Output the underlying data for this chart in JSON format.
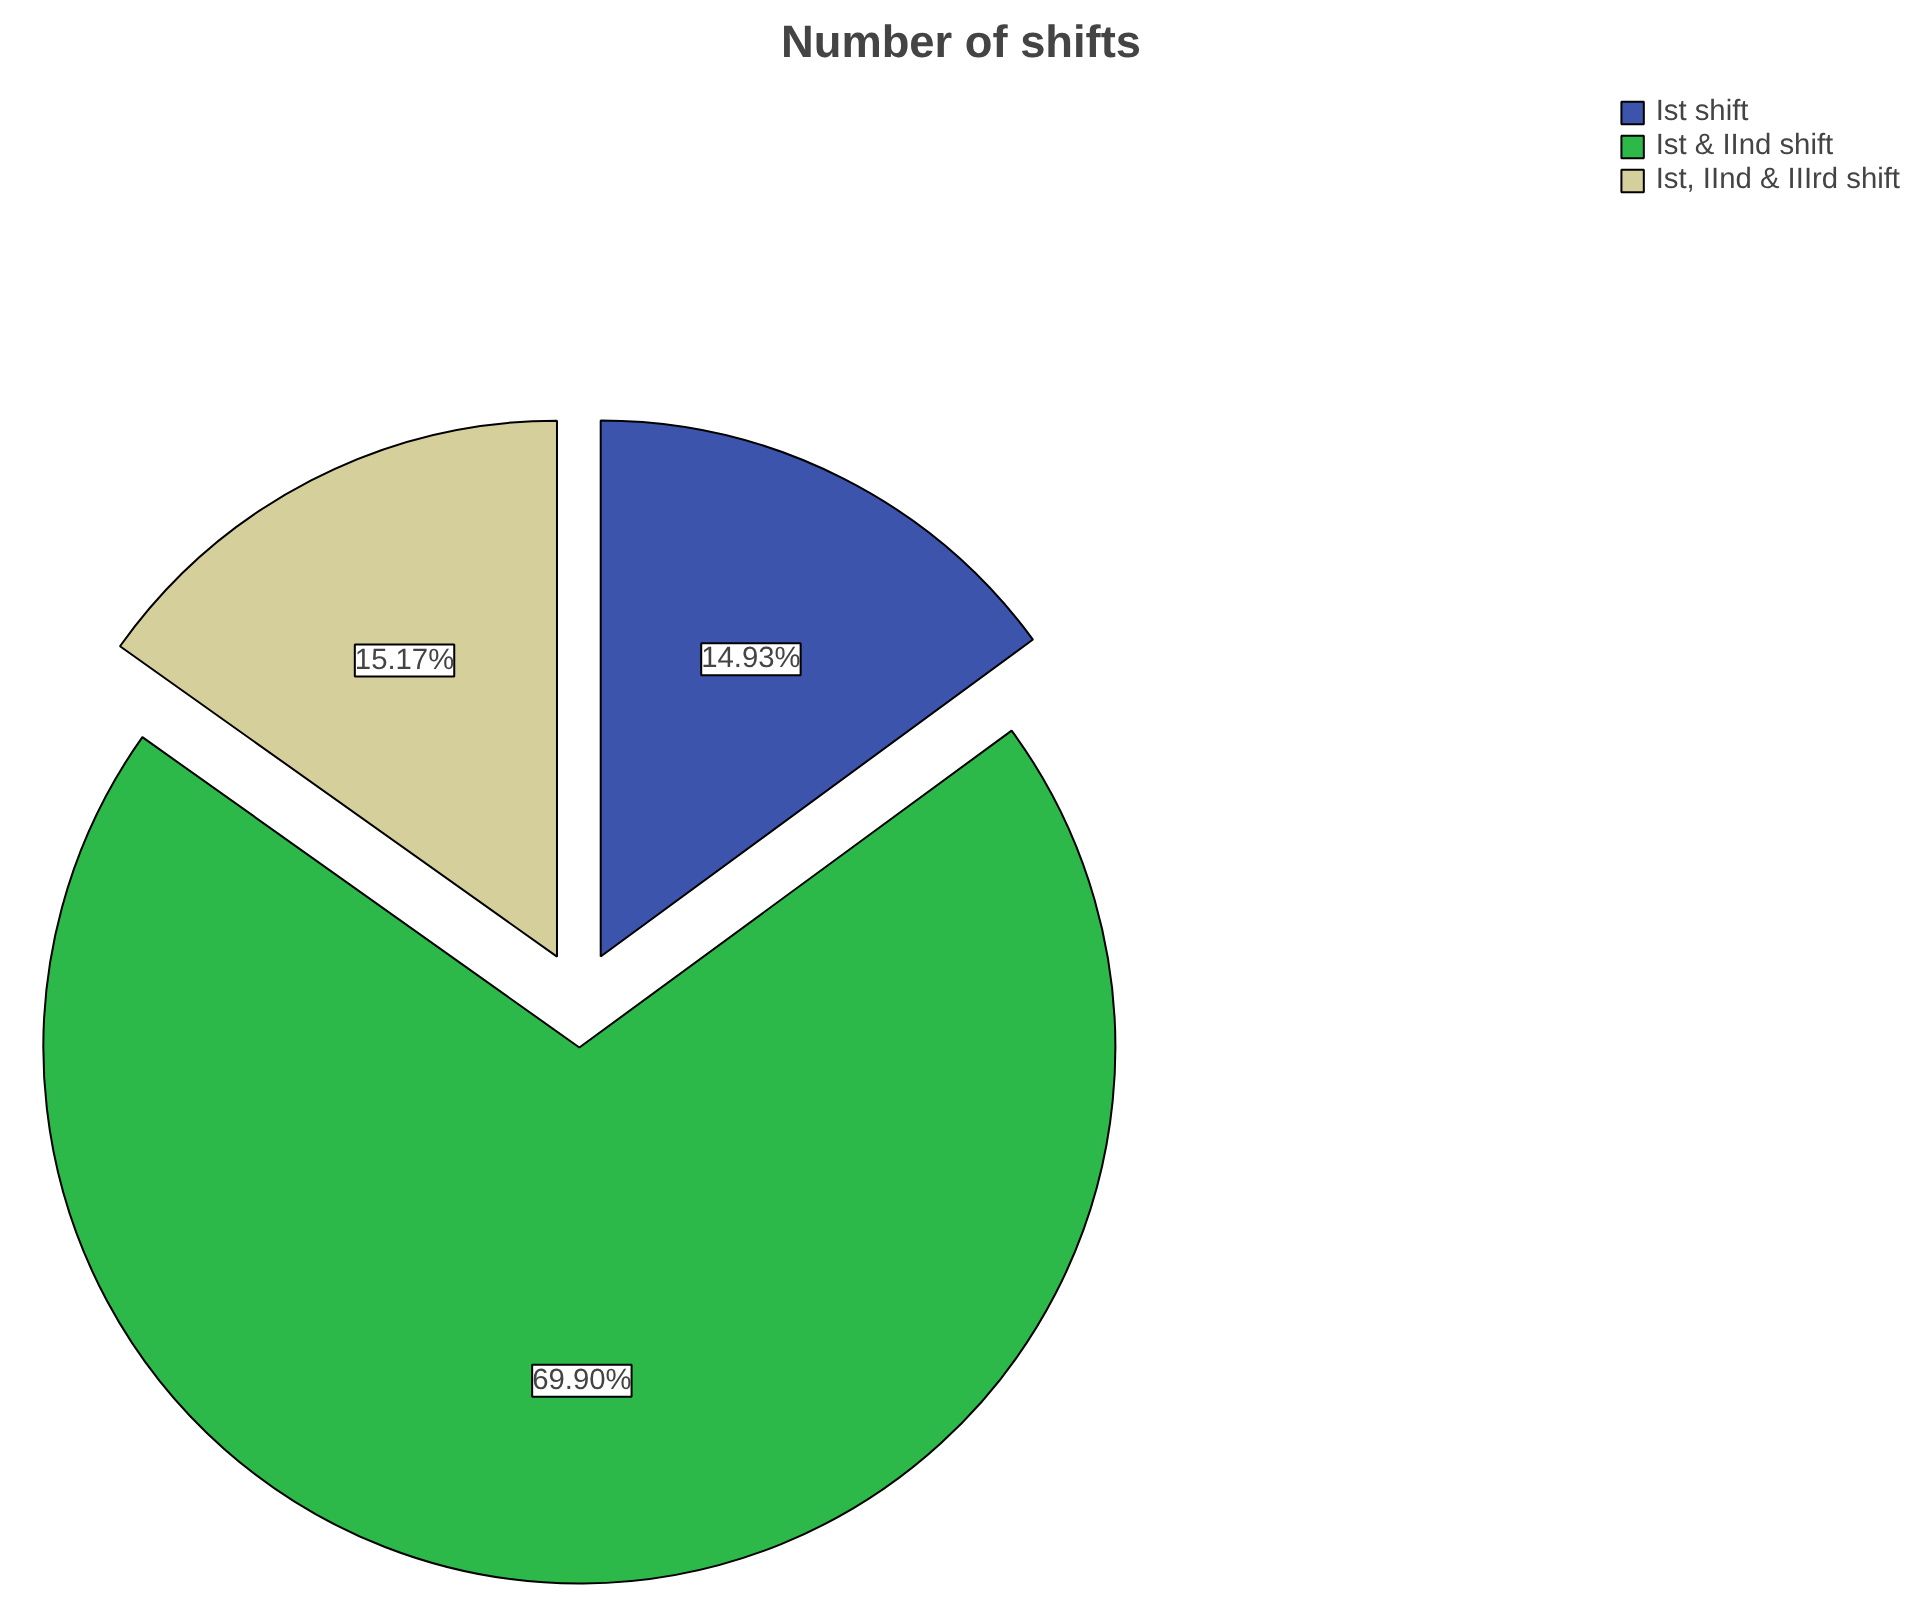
{
  "chart_data": {
    "type": "pie",
    "title": "Number of shifts",
    "categories": [
      "Ist shift",
      "Ist & IInd shift",
      "Ist, IInd & IIIrd shift"
    ],
    "values": [
      14.93,
      69.9,
      15.17
    ],
    "colors": [
      "#3d54ad",
      "#2db84a",
      "#d5cf9c"
    ],
    "value_labels": [
      "14.93%",
      "69.90%",
      "15.17%"
    ],
    "legend": "top right"
  }
}
